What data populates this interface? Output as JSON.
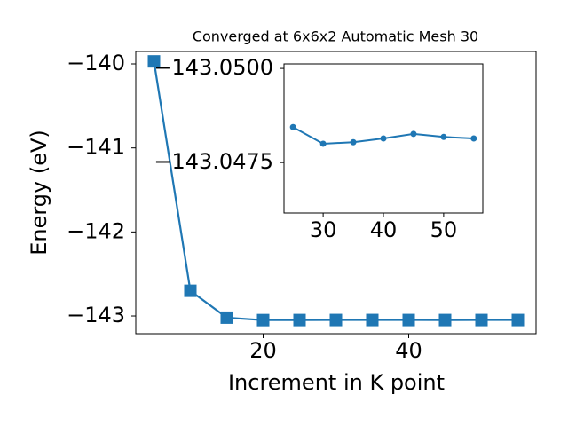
{
  "chart_data": [
    {
      "type": "line",
      "title": "Converged at 6x6x2 Automatic Mesh 30",
      "x_label": "Increment in K point",
      "y_label": "Energy (eV)",
      "x": [
        5,
        10,
        15,
        20,
        25,
        30,
        35,
        40,
        45,
        50,
        55
      ],
      "series": [
        {
          "color": "#1f77b4",
          "marker": "square",
          "values": [
            -139.97,
            -142.7,
            -143.02,
            -143.049,
            -143.04844,
            -143.048,
            -143.04804,
            -143.04814,
            -143.04826,
            -143.04818,
            -143.04814
          ]
        }
      ],
      "xlim": [
        2.5,
        57.5
      ],
      "ylim": [
        -143.211,
        -139.852
      ],
      "xticks": [
        20,
        40
      ],
      "yticks": [
        {
          "value": -143,
          "label": "−143"
        },
        {
          "value": -142,
          "label": "−142"
        },
        {
          "value": -141,
          "label": "−141"
        },
        {
          "value": -140,
          "label": "−140"
        }
      ]
    },
    {
      "type": "line",
      "x": [
        25,
        30,
        35,
        40,
        45,
        50,
        55
      ],
      "series": [
        {
          "color": "#1f77b4",
          "marker": "circle",
          "values": [
            -143.04844,
            -143.048,
            -143.04804,
            -143.04814,
            -143.04826,
            -143.04818,
            -143.04814
          ]
        }
      ],
      "xlim": [
        23.5,
        56.5
      ],
      "ylim": [
        -143.04616,
        -143.05012
      ],
      "xticks": [
        30,
        40,
        50
      ],
      "yticks": [
        {
          "value": -143.05,
          "label": "−143.0500"
        },
        {
          "value": -143.0475,
          "label": "−143.0475"
        }
      ]
    }
  ]
}
